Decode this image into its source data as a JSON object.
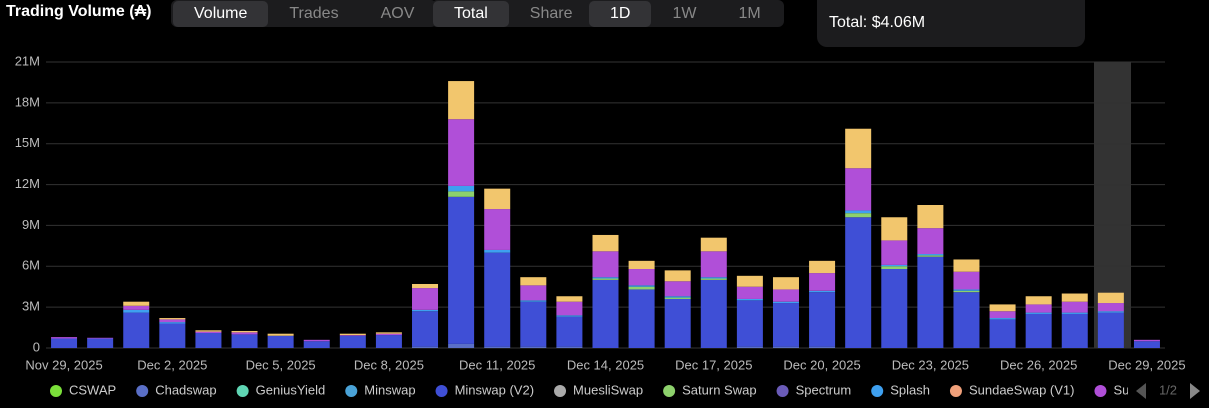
{
  "ui": {
    "groups": [
      {
        "buttons": [
          "Volume",
          "Trades",
          "AOV"
        ],
        "active": 0
      },
      {
        "buttons": [
          "Total",
          "Share"
        ],
        "active": 0
      },
      {
        "buttons": [
          "1D",
          "1W",
          "1M"
        ],
        "active": 0
      }
    ],
    "tooltip": "Total: $4.06M",
    "pager": "1/2"
  },
  "chart_data": {
    "type": "bar",
    "stacked": true,
    "title": "Trading Volume (₳)",
    "categories": [
      "Nov 29, 2025",
      null,
      null,
      "Dec 2, 2025",
      null,
      null,
      "Dec 5, 2025",
      null,
      null,
      "Dec 8, 2025",
      null,
      null,
      "Dec 11, 2025",
      null,
      null,
      "Dec 14, 2025",
      null,
      null,
      "Dec 17, 2025",
      null,
      null,
      "Dec 20, 2025",
      null,
      null,
      "Dec 23, 2025",
      null,
      null,
      "Dec 26, 2025",
      null,
      null,
      "Dec 29, 2025"
    ],
    "ylim": [
      0,
      21000000
    ],
    "yticks": [
      {
        "value": 0,
        "label": "0"
      },
      {
        "value": 3000000,
        "label": "3M"
      },
      {
        "value": 6000000,
        "label": "6M"
      },
      {
        "value": 9000000,
        "label": "9M"
      },
      {
        "value": 12000000,
        "label": "12M"
      },
      {
        "value": 15000000,
        "label": "15M"
      },
      {
        "value": 18000000,
        "label": "18M"
      },
      {
        "value": 21000000,
        "label": "21M"
      }
    ],
    "grid": true,
    "series": [
      {
        "name": "CSWAP",
        "color": "#7be03a",
        "values": [
          0,
          0,
          0,
          0,
          0,
          0,
          0,
          0,
          0,
          0,
          0,
          0,
          0,
          0,
          0,
          0,
          0,
          0,
          0,
          0,
          0,
          0,
          0,
          0,
          0,
          0,
          0,
          0,
          0,
          0,
          0
        ]
      },
      {
        "name": "Chadswap",
        "color": "#5a6fc7",
        "values": [
          0,
          0,
          0,
          0,
          0,
          0,
          0,
          0,
          0,
          0,
          100000,
          300000,
          100000,
          100000,
          100000,
          0,
          0,
          0,
          0,
          100000,
          100000,
          100000,
          0,
          0,
          0,
          0,
          0,
          0,
          0,
          0,
          0
        ]
      },
      {
        "name": "GeniusYield",
        "color": "#5fd6b4",
        "values": [
          0,
          0,
          0,
          0,
          0,
          0,
          0,
          0,
          0,
          0,
          0,
          0,
          0,
          0,
          0,
          0,
          0,
          0,
          0,
          0,
          0,
          0,
          0,
          0,
          0,
          0,
          0,
          0,
          0,
          0,
          0
        ]
      },
      {
        "name": "Minswap",
        "color": "#4aa3d8",
        "values": [
          0,
          0,
          0,
          0,
          0,
          0,
          0,
          0,
          0,
          0,
          0,
          0,
          0,
          0,
          0,
          0,
          0,
          0,
          0,
          0,
          0,
          0,
          0,
          0,
          0,
          0,
          0,
          0,
          0,
          0,
          0
        ]
      },
      {
        "name": "Minswap (V2)",
        "color": "#3f4fd6",
        "values": [
          700000,
          700000,
          2600000,
          1800000,
          1100000,
          1000000,
          900000,
          500000,
          900000,
          950000,
          2600000,
          10800000,
          6900000,
          3300000,
          2200000,
          5000000,
          4300000,
          3600000,
          5000000,
          3400000,
          3200000,
          4000000,
          9600000,
          5800000,
          6700000,
          4100000,
          2100000,
          2500000,
          2500000,
          2600000,
          500000
        ]
      },
      {
        "name": "MuesliSwap",
        "color": "#aaaaaa",
        "values": [
          0,
          0,
          0,
          0,
          0,
          0,
          0,
          0,
          0,
          0,
          0,
          0,
          0,
          0,
          0,
          0,
          0,
          0,
          0,
          0,
          0,
          0,
          0,
          0,
          0,
          0,
          0,
          0,
          0,
          0,
          0
        ]
      },
      {
        "name": "Saturn Swap",
        "color": "#8dd16c",
        "values": [
          0,
          0,
          0,
          0,
          0,
          0,
          0,
          0,
          0,
          0,
          0,
          400000,
          0,
          0,
          0,
          100000,
          200000,
          100000,
          100000,
          0,
          0,
          0,
          300000,
          200000,
          100000,
          100000,
          0,
          0,
          0,
          0,
          0
        ]
      },
      {
        "name": "Spectrum",
        "color": "#6a5bb8",
        "values": [
          0,
          0,
          0,
          0,
          0,
          0,
          0,
          0,
          0,
          0,
          0,
          0,
          0,
          0,
          0,
          0,
          0,
          0,
          0,
          0,
          0,
          0,
          0,
          0,
          0,
          0,
          0,
          0,
          0,
          0,
          0
        ]
      },
      {
        "name": "Splash",
        "color": "#3ea0f0",
        "values": [
          0,
          0,
          200000,
          100000,
          0,
          0,
          0,
          0,
          0,
          0,
          100000,
          400000,
          200000,
          100000,
          100000,
          100000,
          100000,
          100000,
          100000,
          100000,
          100000,
          100000,
          200000,
          100000,
          100000,
          100000,
          100000,
          100000,
          100000,
          100000,
          0
        ]
      },
      {
        "name": "SundaeSwap (V1)",
        "color": "#f0a07a",
        "values": [
          0,
          0,
          0,
          0,
          0,
          0,
          0,
          0,
          0,
          0,
          0,
          0,
          0,
          0,
          0,
          0,
          0,
          0,
          0,
          0,
          0,
          0,
          0,
          0,
          0,
          0,
          0,
          0,
          0,
          0,
          0
        ]
      },
      {
        "name": "Su",
        "color": "#b04fd8",
        "values": [
          100000,
          50000,
          300000,
          200000,
          100000,
          150000,
          0,
          100000,
          50000,
          100000,
          1600000,
          4900000,
          3000000,
          1100000,
          1000000,
          1900000,
          1200000,
          1100000,
          1900000,
          900000,
          900000,
          1300000,
          3100000,
          1800000,
          1900000,
          1300000,
          500000,
          600000,
          800000,
          600000,
          100000
        ]
      },
      {
        "name": null,
        "color": "#f2c66d",
        "values": [
          0,
          0,
          300000,
          100000,
          100000,
          100000,
          150000,
          0,
          100000,
          100000,
          300000,
          2800000,
          1500000,
          600000,
          400000,
          1200000,
          600000,
          800000,
          1000000,
          800000,
          900000,
          900000,
          2900000,
          1700000,
          1700000,
          900000,
          500000,
          600000,
          600000,
          760000,
          0
        ]
      }
    ]
  }
}
